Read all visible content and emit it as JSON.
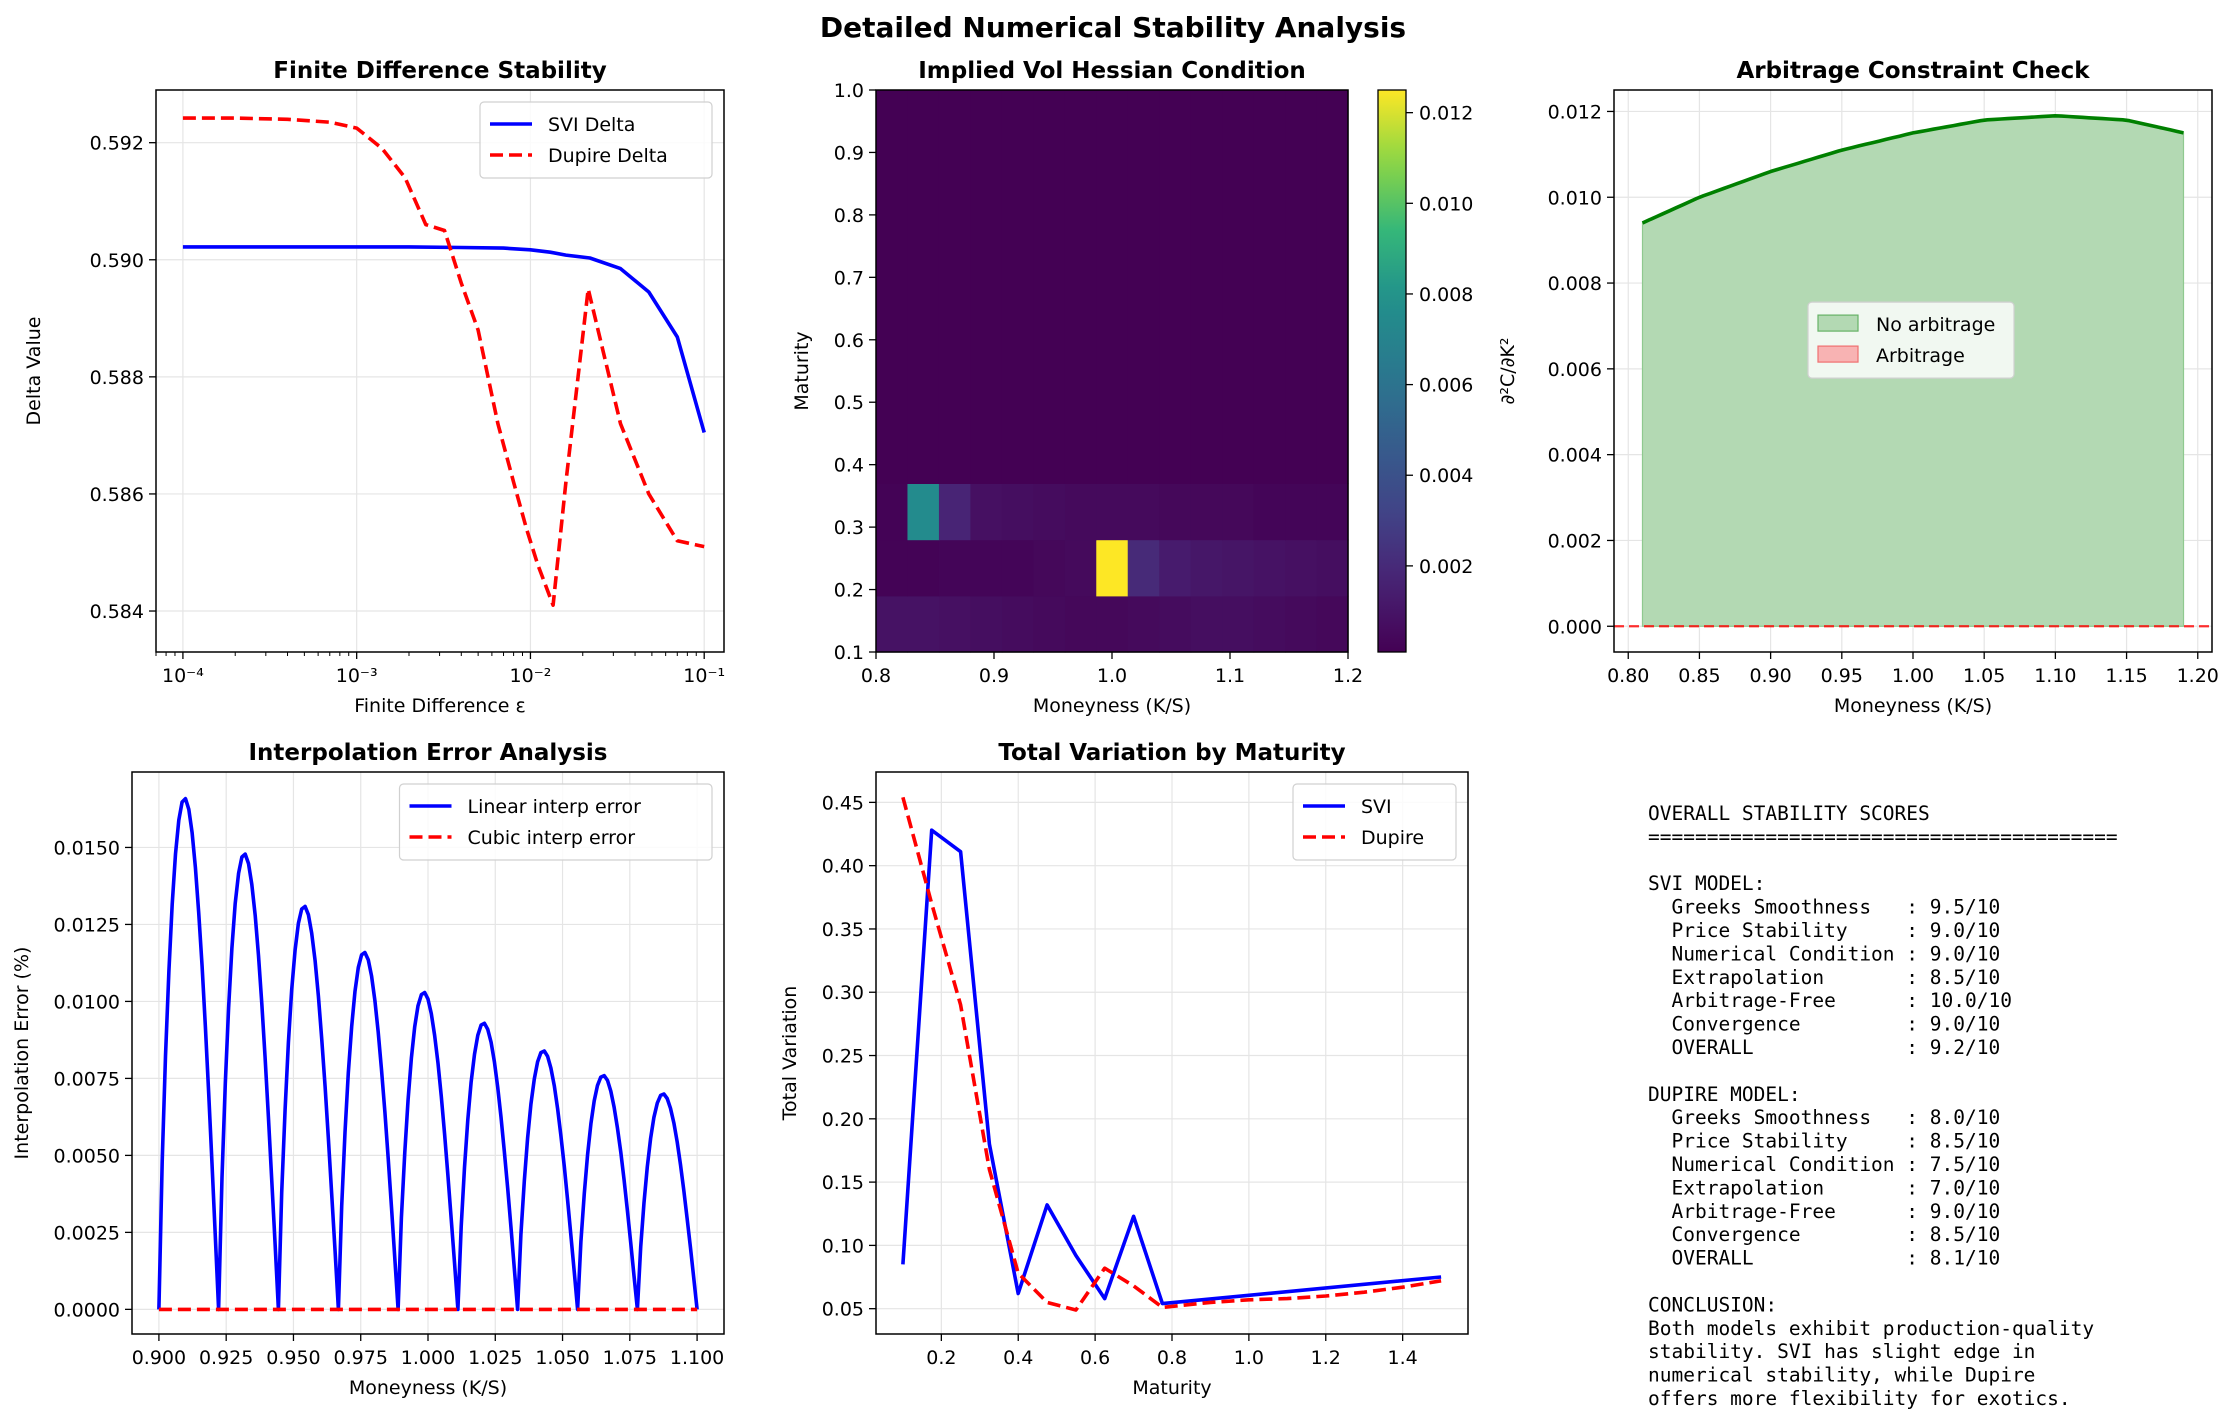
{
  "suptitle": "Detailed Numerical Stability Analysis",
  "chart_data": [
    {
      "id": "fd",
      "type": "line",
      "title": "Finite Difference Stability",
      "xlabel": "Finite Difference ε",
      "ylabel": "Delta Value",
      "xscale": "log",
      "xlim": [
        7e-05,
        0.13
      ],
      "ylim": [
        0.5833,
        0.5929
      ],
      "xticks": [
        0.0001,
        0.001,
        0.01,
        0.1
      ],
      "xtick_labels": [
        "10⁻⁴",
        "10⁻³",
        "10⁻²",
        "10⁻¹"
      ],
      "yticks": [
        0.584,
        0.586,
        0.588,
        0.59,
        0.592
      ],
      "ytick_labels": [
        "0.584",
        "0.586",
        "0.588",
        "0.590",
        "0.592"
      ],
      "grid": true,
      "legend": "top-right",
      "series": [
        {
          "name": "SVI Delta",
          "color": "#0000ff",
          "dash": "solid",
          "x": [
            0.0001,
            0.0002,
            0.0005,
            0.001,
            0.002,
            0.004,
            0.007,
            0.01,
            0.013,
            0.016,
            0.022,
            0.033,
            0.048,
            0.07,
            0.1
          ],
          "y": [
            0.59022,
            0.59022,
            0.59022,
            0.59022,
            0.59022,
            0.59021,
            0.5902,
            0.59017,
            0.59013,
            0.59008,
            0.59003,
            0.58985,
            0.58945,
            0.58868,
            0.58705
          ]
        },
        {
          "name": "Dupire Delta",
          "color": "#ff0000",
          "dash": "dashed",
          "x": [
            0.0001,
            0.0002,
            0.0004,
            0.0007,
            0.001,
            0.0014,
            0.0019,
            0.0025,
            0.0032,
            0.004,
            0.005,
            0.0065,
            0.008,
            0.0095,
            0.011,
            0.0135,
            0.016,
            0.0215,
            0.033,
            0.048,
            0.07,
            0.1
          ],
          "y": [
            0.59242,
            0.59242,
            0.5924,
            0.59235,
            0.59225,
            0.5919,
            0.5914,
            0.5906,
            0.5905,
            0.5896,
            0.5888,
            0.5872,
            0.5862,
            0.5854,
            0.5848,
            0.5841,
            0.5862,
            0.5895,
            0.5872,
            0.586,
            0.5852,
            0.5851
          ]
        }
      ]
    },
    {
      "id": "hess",
      "type": "heatmap",
      "title": "Implied Vol Hessian Condition",
      "xlabel": "Moneyness (K/S)",
      "ylabel": "Maturity",
      "xlim": [
        0.8,
        1.2
      ],
      "ylim": [
        0.1,
        1.0
      ],
      "xticks": [
        0.8,
        0.9,
        1.0,
        1.1,
        1.2
      ],
      "xtick_labels": [
        "0.8",
        "0.9",
        "1.0",
        "1.1",
        "1.2"
      ],
      "yticks": [
        0.1,
        0.2,
        0.3,
        0.4,
        0.5,
        0.6,
        0.7,
        0.8,
        0.9,
        1.0
      ],
      "ytick_labels": [
        "0.1",
        "0.2",
        "0.3",
        "0.4",
        "0.5",
        "0.6",
        "0.7",
        "0.8",
        "0.9",
        "1.0"
      ],
      "colorbar": {
        "vmin": 0.0001,
        "vmax": 0.0125,
        "ticks": [
          0.002,
          0.004,
          0.006,
          0.008,
          0.01,
          0.012
        ],
        "tick_labels": [
          "0.002",
          "0.004",
          "0.006",
          "0.008",
          "0.010",
          "0.012"
        ]
      },
      "cols": 15,
      "rows": [
        {
          "y0": 0.1,
          "y1": 0.19,
          "values": [
            0.0009,
            0.0009,
            0.0008,
            0.0007,
            0.0006,
            0.0005,
            0.0004,
            0.0004,
            0.0005,
            0.0006,
            0.0007,
            0.0007,
            0.0006,
            0.0005,
            0.0004
          ]
        },
        {
          "y0": 0.19,
          "y1": 0.28,
          "values": [
            0.0002,
            0.0002,
            0.0003,
            0.0003,
            0.0003,
            0.0004,
            0.0005,
            0.0125,
            0.002,
            0.0013,
            0.0011,
            0.001,
            0.0009,
            0.0008,
            0.0007
          ]
        },
        {
          "y0": 0.28,
          "y1": 0.37,
          "values": [
            0.0002,
            0.0075,
            0.0017,
            0.0008,
            0.0007,
            0.0006,
            0.0005,
            0.0005,
            0.0005,
            0.0004,
            0.0004,
            0.0004,
            0.0003,
            0.0003,
            0.0003
          ]
        },
        {
          "y0": 0.37,
          "y1": 1.0,
          "values": [
            0.0001,
            0.0001,
            0.0001,
            0.0001,
            0.0001,
            0.0001,
            0.0001,
            0.0001,
            0.0001,
            0.0001,
            0.0001,
            0.0001,
            0.0001,
            0.0001,
            0.0001
          ]
        }
      ]
    },
    {
      "id": "arb",
      "type": "area",
      "title": "Arbitrage Constraint Check",
      "xlabel": "Moneyness (K/S)",
      "ylabel": "∂²C/∂K²",
      "xlim": [
        0.79,
        1.21
      ],
      "ylim": [
        -0.0006,
        0.0125
      ],
      "xticks": [
        0.8,
        0.85,
        0.9,
        0.95,
        1.0,
        1.05,
        1.1,
        1.15,
        1.2
      ],
      "xtick_labels": [
        "0.80",
        "0.85",
        "0.90",
        "0.95",
        "1.00",
        "1.05",
        "1.10",
        "1.15",
        "1.20"
      ],
      "yticks": [
        0.0,
        0.002,
        0.004,
        0.006,
        0.008,
        0.01,
        0.012
      ],
      "ytick_labels": [
        "0.000",
        "0.002",
        "0.004",
        "0.006",
        "0.008",
        "0.010",
        "0.012"
      ],
      "grid": true,
      "legend": "center",
      "legend_entries": [
        {
          "name": "No arbitrage",
          "color": "#b3d9b3",
          "edge": "#66b266"
        },
        {
          "name": "Arbitrage",
          "color": "#f8b3b3",
          "edge": "#f07070"
        }
      ],
      "series": [
        {
          "name": "",
          "color": "#008000",
          "fill": "#b3d9b3",
          "x": [
            0.81,
            0.85,
            0.9,
            0.95,
            1.0,
            1.05,
            1.1,
            1.15,
            1.19
          ],
          "y": [
            0.0094,
            0.01,
            0.0106,
            0.0111,
            0.0115,
            0.0118,
            0.0119,
            0.0118,
            0.0115
          ]
        }
      ],
      "hline": {
        "y": 0.0,
        "color": "#ff0000",
        "dash": "dashed"
      }
    },
    {
      "id": "interp",
      "type": "line",
      "title": "Interpolation Error Analysis",
      "xlabel": "Moneyness (K/S)",
      "ylabel": "Interpolation Error (%)",
      "xlim": [
        0.89,
        1.11
      ],
      "ylim": [
        -0.0008,
        0.01745
      ],
      "xticks": [
        0.9,
        0.925,
        0.95,
        0.975,
        1.0,
        1.025,
        1.05,
        1.075,
        1.1
      ],
      "xtick_labels": [
        "0.900",
        "0.925",
        "0.950",
        "0.975",
        "1.000",
        "1.025",
        "1.050",
        "1.075",
        "1.100"
      ],
      "yticks": [
        0.0,
        0.0025,
        0.005,
        0.0075,
        0.01,
        0.0125,
        0.015
      ],
      "ytick_labels": [
        "0.0000",
        "0.0025",
        "0.0050",
        "0.0075",
        "0.0100",
        "0.0125",
        "0.0150"
      ],
      "grid": true,
      "legend": "top-right",
      "nodes": [
        0.9,
        0.9222,
        0.9444,
        0.9667,
        0.9889,
        1.0111,
        1.0333,
        1.0556,
        1.0778,
        1.1
      ],
      "peaks": [
        0.0166,
        0.0148,
        0.0131,
        0.0116,
        0.0103,
        0.0093,
        0.0084,
        0.0076,
        0.007
      ],
      "series": [
        {
          "name": "Linear interp error",
          "color": "#0000ff",
          "dash": "solid"
        },
        {
          "name": "Cubic interp error",
          "color": "#ff0000",
          "dash": "dashed",
          "x": [
            0.9,
            1.1
          ],
          "y": [
            0.0,
            0.0
          ]
        }
      ]
    },
    {
      "id": "tv",
      "type": "line",
      "title": "Total Variation by Maturity",
      "xlabel": "Maturity",
      "ylabel": "Total Variation",
      "xlim": [
        0.03,
        1.57
      ],
      "ylim": [
        0.03,
        0.474
      ],
      "xticks": [
        0.2,
        0.4,
        0.6,
        0.8,
        1.0,
        1.2,
        1.4
      ],
      "xtick_labels": [
        "0.2",
        "0.4",
        "0.6",
        "0.8",
        "1.0",
        "1.2",
        "1.4"
      ],
      "yticks": [
        0.05,
        0.1,
        0.15,
        0.2,
        0.25,
        0.3,
        0.35,
        0.4,
        0.45
      ],
      "ytick_labels": [
        "0.05",
        "0.10",
        "0.15",
        "0.20",
        "0.25",
        "0.30",
        "0.35",
        "0.40",
        "0.45"
      ],
      "grid": true,
      "legend": "top-right",
      "series": [
        {
          "name": "SVI",
          "color": "#0000ff",
          "dash": "solid",
          "x": [
            0.1,
            0.175,
            0.25,
            0.325,
            0.4,
            0.475,
            0.55,
            0.625,
            0.7,
            0.775,
            1.5
          ],
          "y": [
            0.085,
            0.428,
            0.411,
            0.18,
            0.062,
            0.132,
            0.092,
            0.058,
            0.123,
            0.054,
            0.075
          ]
        },
        {
          "name": "Dupire",
          "color": "#ff0000",
          "dash": "dashed",
          "x": [
            0.1,
            0.175,
            0.25,
            0.325,
            0.4,
            0.475,
            0.55,
            0.625,
            0.7,
            0.775,
            0.9,
            1.0,
            1.1,
            1.2,
            1.3,
            1.4,
            1.5
          ],
          "y": [
            0.454,
            0.37,
            0.29,
            0.16,
            0.078,
            0.055,
            0.049,
            0.082,
            0.068,
            0.051,
            0.055,
            0.057,
            0.058,
            0.06,
            0.063,
            0.067,
            0.072
          ]
        }
      ]
    }
  ],
  "summary": {
    "lines": [
      "OVERALL STABILITY SCORES",
      "========================================",
      "",
      "SVI MODEL:",
      "  Greeks Smoothness   : 9.5/10",
      "  Price Stability     : 9.0/10",
      "  Numerical Condition : 9.0/10",
      "  Extrapolation       : 8.5/10",
      "  Arbitrage-Free      : 10.0/10",
      "  Convergence         : 9.0/10",
      "  OVERALL             : 9.2/10",
      "",
      "DUPIRE MODEL:",
      "  Greeks Smoothness   : 8.0/10",
      "  Price Stability     : 8.5/10",
      "  Numerical Condition : 7.5/10",
      "  Extrapolation       : 7.0/10",
      "  Arbitrage-Free      : 9.0/10",
      "  Convergence         : 8.5/10",
      "  OVERALL             : 8.1/10",
      "",
      "CONCLUSION:",
      "Both models exhibit production-quality",
      "stability. SVI has slight edge in",
      "numerical stability, while Dupire",
      "offers more flexibility for exotics."
    ]
  }
}
